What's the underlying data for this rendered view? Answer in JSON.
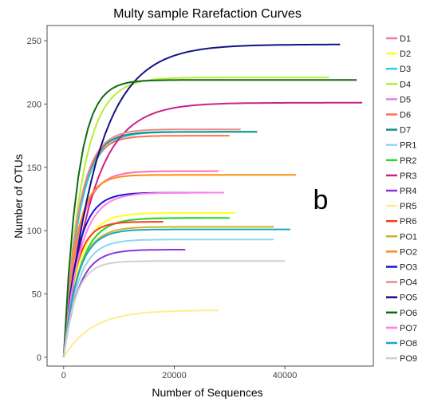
{
  "chart_data": {
    "type": "line",
    "title": "Multy sample Rarefaction Curves",
    "xlabel": "Number of Sequences",
    "ylabel": "Number of OTUs",
    "panel_label": "b",
    "xlim": [
      -3000,
      56000
    ],
    "ylim": [
      -7,
      262
    ],
    "xticks": [
      0,
      20000,
      40000
    ],
    "xtick_labels": [
      "0",
      "20000",
      "40000"
    ],
    "yticks": [
      0,
      50,
      100,
      150,
      200,
      250
    ],
    "ytick_labels": [
      "0",
      "50",
      "100",
      "150",
      "200",
      "250"
    ],
    "grid": false,
    "legend_position": "right",
    "series": [
      {
        "name": "D1",
        "color": "#ff6fae",
        "x_max": 28000,
        "y_max": 147,
        "y_at_2000": 80
      },
      {
        "name": "D2",
        "color": "#ffff1a",
        "x_max": 31000,
        "y_max": 114,
        "y_at_2000": 60
      },
      {
        "name": "D3",
        "color": "#19d3e6",
        "x_max": 35000,
        "y_max": 178,
        "y_at_2000": 90
      },
      {
        "name": "D4",
        "color": "#b6ee3a",
        "x_max": 48000,
        "y_max": 221,
        "y_at_2000": 100
      },
      {
        "name": "D5",
        "color": "#e080f0",
        "x_max": 25000,
        "y_max": 110,
        "y_at_2000": 55
      },
      {
        "name": "D6",
        "color": "#ff6f52",
        "x_max": 30000,
        "y_max": 175,
        "y_at_2000": 95
      },
      {
        "name": "D7",
        "color": "#168f88",
        "x_max": 35000,
        "y_max": 178,
        "y_at_2000": 95
      },
      {
        "name": "PR1",
        "color": "#8ad8f0",
        "x_max": 38000,
        "y_max": 93,
        "y_at_2000": 50
      },
      {
        "name": "PR2",
        "color": "#22dd22",
        "x_max": 30000,
        "y_max": 110,
        "y_at_2000": 55
      },
      {
        "name": "PR3",
        "color": "#c8238c",
        "x_max": 54000,
        "y_max": 201,
        "y_at_2000": 65
      },
      {
        "name": "PR4",
        "color": "#8b38d8",
        "x_max": 22000,
        "y_max": 85,
        "y_at_2000": 45
      },
      {
        "name": "PR5",
        "color": "#ffec90",
        "x_max": 28000,
        "y_max": 37,
        "y_at_2000": 12
      },
      {
        "name": "PR6",
        "color": "#ff3a1a",
        "x_max": 18000,
        "y_max": 107,
        "y_at_2000": 65
      },
      {
        "name": "PO1",
        "color": "#d0b02a",
        "x_max": 38000,
        "y_max": 103,
        "y_at_2000": 55
      },
      {
        "name": "PO2",
        "color": "#ff8a1a",
        "x_max": 42000,
        "y_max": 144,
        "y_at_2000": 85
      },
      {
        "name": "PO3",
        "color": "#1414d8",
        "x_max": 27000,
        "y_max": 130,
        "y_at_2000": 72
      },
      {
        "name": "PO4",
        "color": "#ea8a8a",
        "x_max": 32000,
        "y_max": 180,
        "y_at_2000": 95
      },
      {
        "name": "PO5",
        "color": "#121288",
        "x_max": 50000,
        "y_max": 247,
        "y_at_2000": 70
      },
      {
        "name": "PO6",
        "color": "#0e6a0e",
        "x_max": 53000,
        "y_max": 219,
        "y_at_2000": 120
      },
      {
        "name": "PO7",
        "color": "#ff80e8",
        "x_max": 29000,
        "y_max": 130,
        "y_at_2000": 65
      },
      {
        "name": "PO8",
        "color": "#1aa8c0",
        "x_max": 41000,
        "y_max": 101,
        "y_at_2000": 55
      },
      {
        "name": "PO9",
        "color": "#d0d0d0",
        "x_max": 40000,
        "y_max": 76,
        "y_at_2000": 45
      }
    ]
  }
}
